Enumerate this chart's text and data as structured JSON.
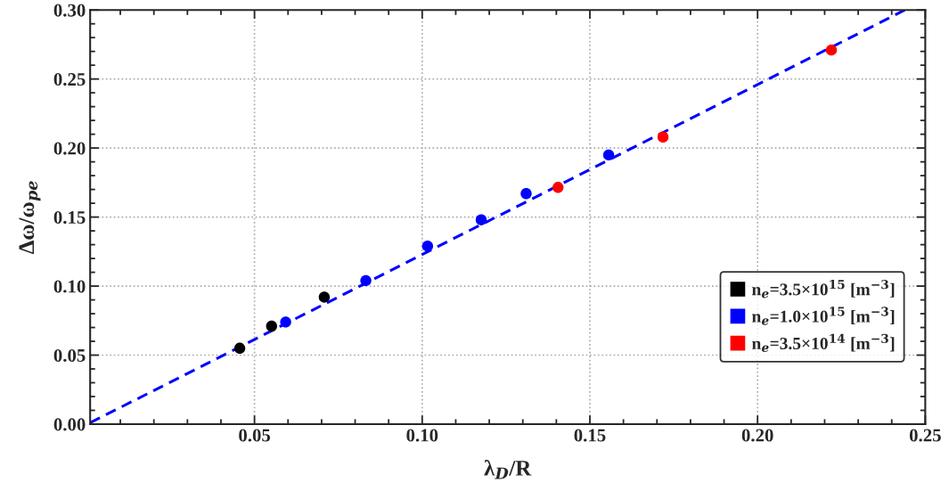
{
  "chart_data": {
    "type": "scatter",
    "xlabel": "λ$_{D}$/R",
    "ylabel": "Δω/ω$_{pe}$",
    "xlim": [
      0.001,
      0.25
    ],
    "xticks": [
      0.05,
      {
        "value": 0.1,
        "label": "0.10"
      },
      0.15,
      {
        "value": 0.2,
        "label": "0.20"
      },
      0.25
    ],
    "ylim": [
      0,
      0.3
    ],
    "yticks": [
      {
        "value": 0,
        "label": "0.00"
      },
      0.05,
      {
        "value": 0.1,
        "label": "0.10"
      },
      0.15,
      {
        "value": 0.2,
        "label": "0.20"
      },
      0.25,
      {
        "value": 0.3,
        "label": "0.30"
      }
    ],
    "grid": true,
    "legend": "bottom right",
    "marker": "circle",
    "series": [
      {
        "name": "n$_{e}$=3.5×10$^{15}$ [m$^{−3}$]",
        "color": "#000000",
        "x": [
          0.0456,
          0.0551,
          0.0708
        ],
        "values": [
          0.055,
          0.071,
          0.092
        ]
      },
      {
        "name": "n$_{e}$=1.0×10$^{15}$ [m$^{−3}$]",
        "color": "#0000ff",
        "x": [
          0.0593,
          0.0832,
          0.1016,
          0.1176,
          0.131,
          0.1556
        ],
        "values": [
          0.074,
          0.104,
          0.129,
          0.148,
          0.167,
          0.195
        ]
      },
      {
        "name": "n$_{e}$=3.5×10$^{14}$ [m$^{−3}$]",
        "color": "#ff0000",
        "x": [
          0.1405,
          0.1718,
          0.222
        ],
        "values": [
          0.1715,
          0.208,
          0.271
        ]
      },
      {
        "type": "line",
        "color": "#0000ff",
        "line_style": "dashed",
        "marker": "none",
        "x": [
          0.001,
          0.2439
        ],
        "values": [
          0.001,
          0.3
        ]
      }
    ]
  }
}
